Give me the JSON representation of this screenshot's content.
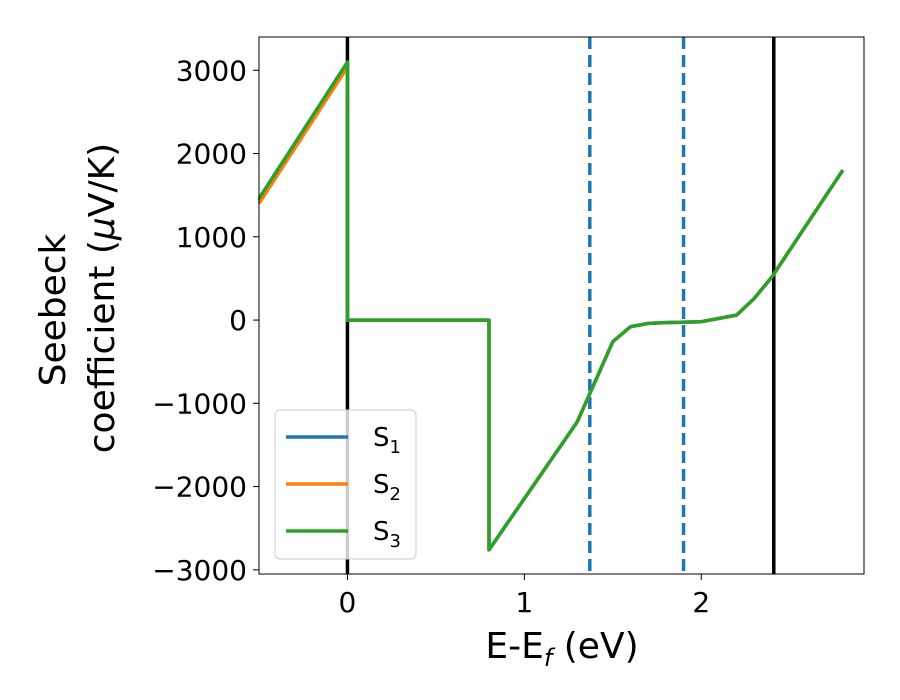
{
  "chart_data": {
    "type": "line",
    "xlabel": "E-E",
    "xlabel_sub": "f",
    "xlabel_unit": " (eV)",
    "ylabel_line1": "Seebeck",
    "ylabel_line2": "coefficient  (",
    "ylabel_mu": "μ",
    "ylabel_unit_end": "V/K)",
    "xlim": [
      -0.5,
      2.92
    ],
    "ylim": [
      -3050,
      3400
    ],
    "xticks": [
      0,
      1,
      2
    ],
    "xtick_labels": [
      "0",
      "1",
      "2"
    ],
    "yticks": [
      3000,
      2000,
      1000,
      0,
      -1000,
      -2000,
      -3000
    ],
    "ytick_labels": [
      "3000",
      "2000",
      "1000",
      "0",
      "−1000",
      "−2000",
      "−3000"
    ],
    "grid": false,
    "legend_position": "lower-left",
    "series": [
      {
        "name": "S",
        "subscript": "1",
        "color": "#1f77b4",
        "x": [
          -0.5,
          0.0,
          0.0,
          0.8,
          0.8,
          1.3,
          1.5,
          1.6,
          1.7,
          1.8,
          2.0,
          2.2,
          2.3,
          2.4,
          2.8
        ],
        "y": [
          1430,
          3070,
          0,
          0,
          -2760,
          -1220,
          -260,
          -80,
          -40,
          -30,
          -20,
          60,
          260,
          520,
          1800
        ]
      },
      {
        "name": "S",
        "subscript": "2",
        "color": "#ff7f0e",
        "x": [
          -0.5,
          0.0,
          0.0,
          0.8,
          0.8,
          1.3,
          1.5,
          1.6,
          1.7,
          1.8,
          2.0,
          2.2,
          2.3,
          2.4,
          2.8
        ],
        "y": [
          1400,
          3040,
          0,
          0,
          -2760,
          -1220,
          -260,
          -80,
          -40,
          -30,
          -20,
          60,
          260,
          520,
          1800
        ]
      },
      {
        "name": "S",
        "subscript": "3",
        "color": "#2ca02c",
        "x": [
          -0.5,
          0.0,
          0.0,
          0.8,
          0.8,
          1.3,
          1.5,
          1.6,
          1.7,
          1.8,
          2.0,
          2.2,
          2.3,
          2.4,
          2.8
        ],
        "y": [
          1460,
          3100,
          0,
          0,
          -2760,
          -1220,
          -260,
          -80,
          -40,
          -30,
          -20,
          60,
          260,
          520,
          1800
        ]
      }
    ],
    "vertical_lines": [
      {
        "x": 0.0,
        "color": "#000000",
        "style": "solid"
      },
      {
        "x": 2.41,
        "color": "#000000",
        "style": "solid"
      },
      {
        "x": 1.37,
        "color": "#1f77b4",
        "style": "dashed"
      },
      {
        "x": 1.9,
        "color": "#1f77b4",
        "style": "dashed"
      }
    ]
  }
}
